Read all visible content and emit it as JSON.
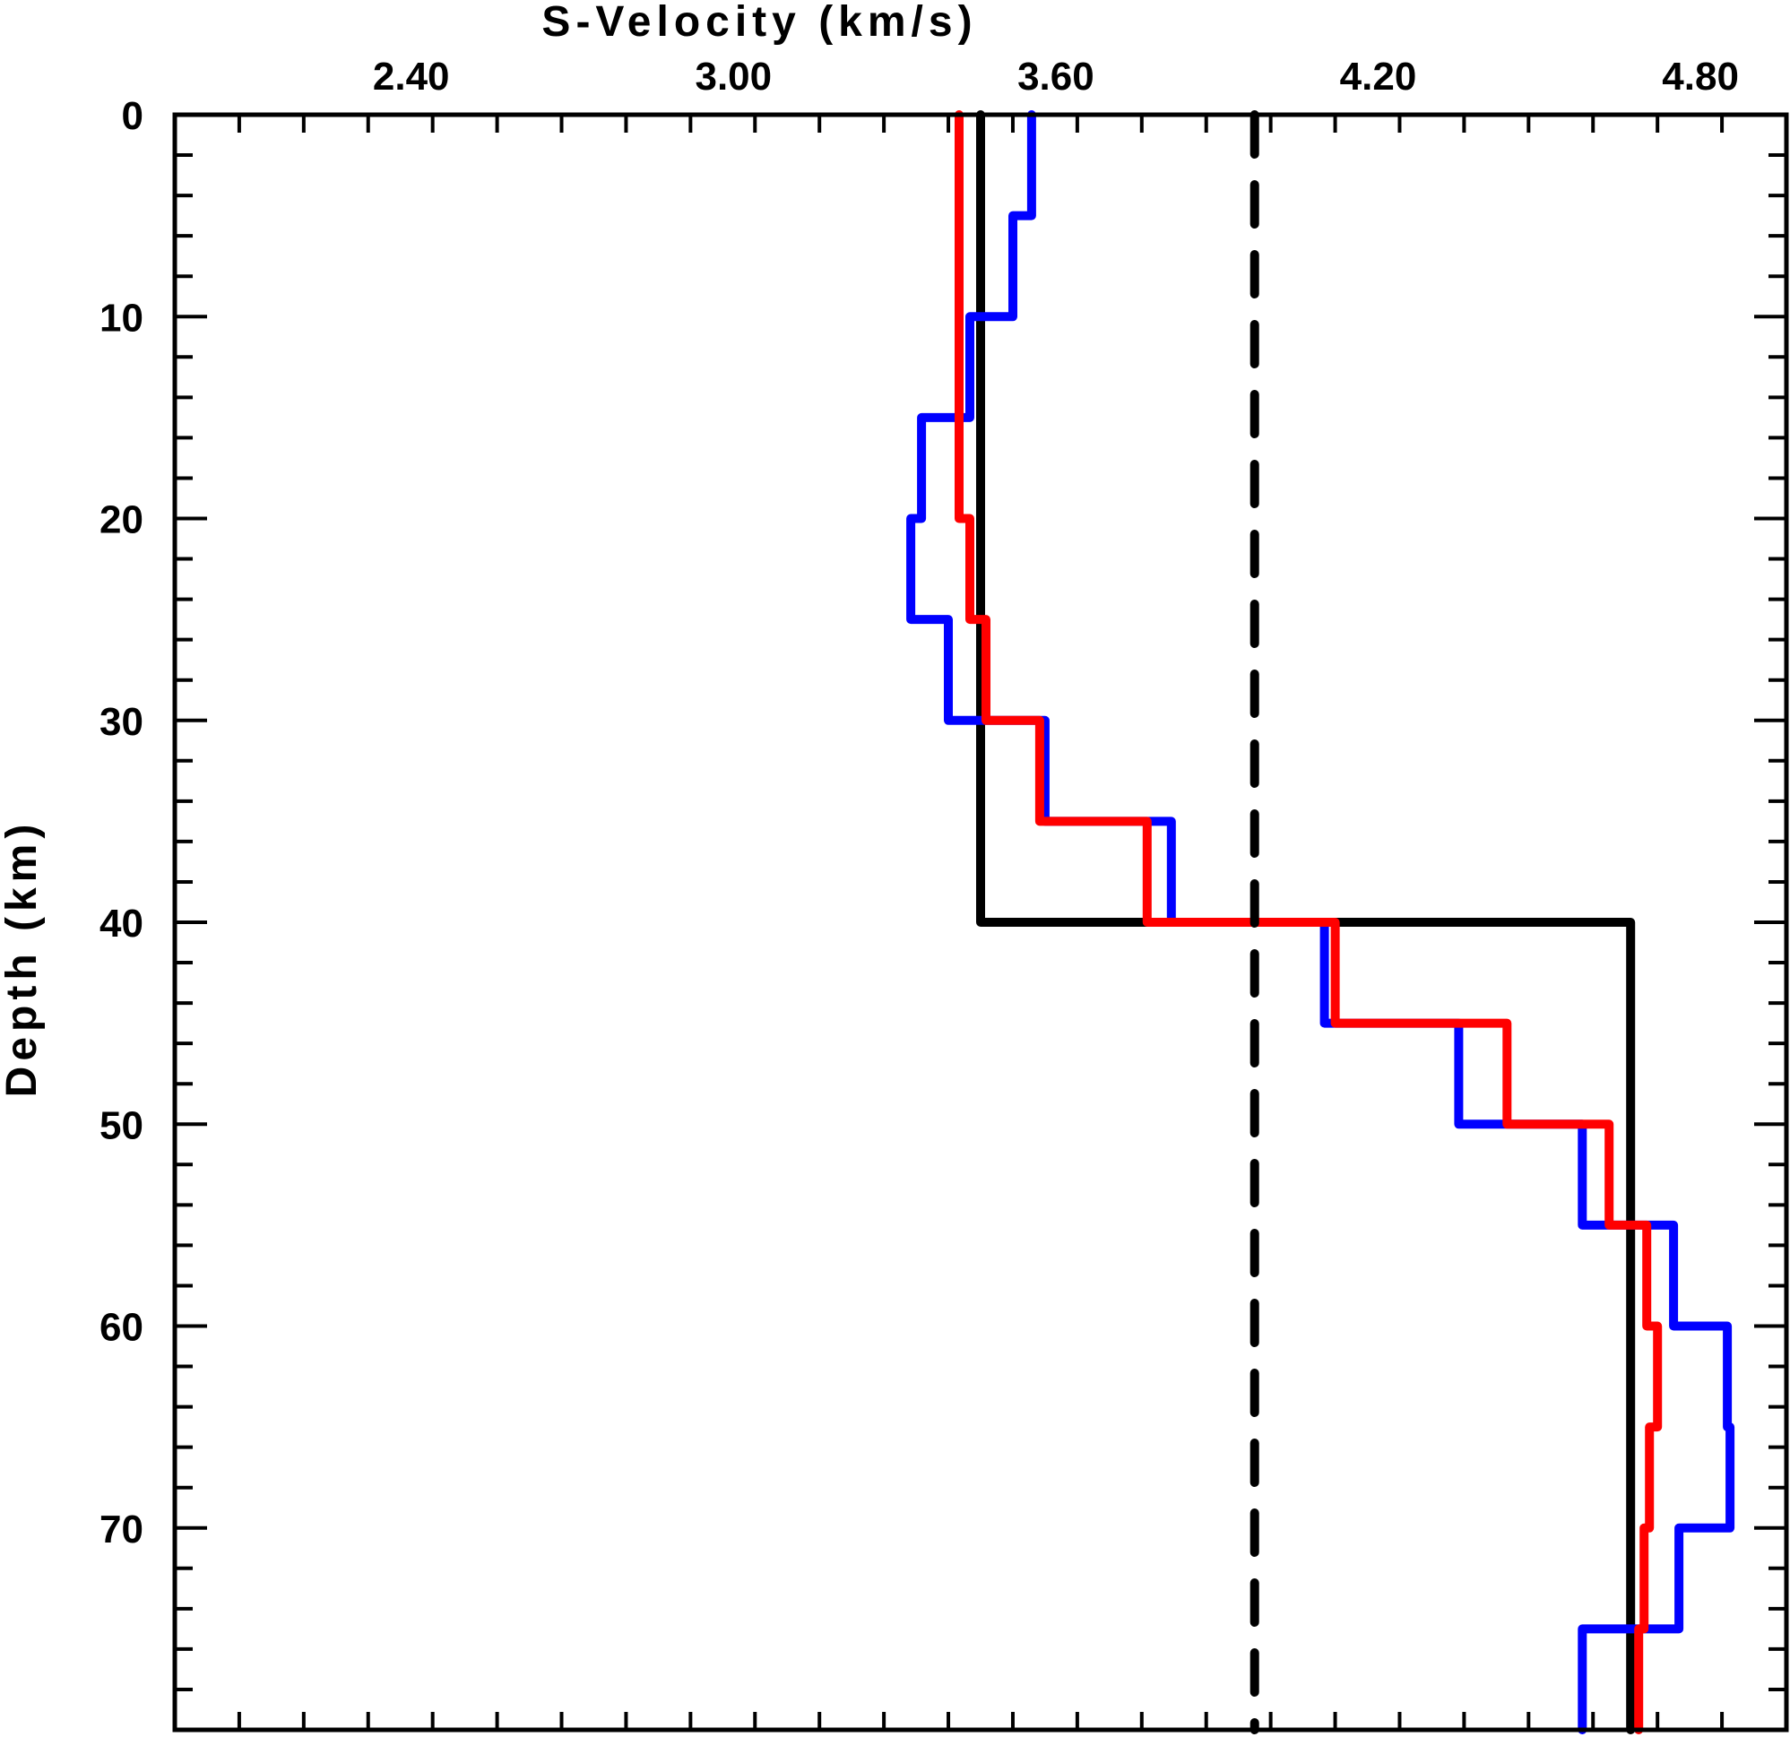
{
  "chart_data": {
    "type": "line",
    "xlabel": "S-Velocity (km/s)",
    "ylabel": "Depth (km)",
    "xlim": [
      1.96,
      4.96
    ],
    "ylim": [
      0,
      80
    ],
    "y_inverted": true,
    "x_axis_position": "top",
    "x_ticks": [
      2.4,
      3.0,
      3.6,
      4.2,
      4.8
    ],
    "x_tick_labels": [
      "2.40",
      "3.00",
      "3.60",
      "4.20",
      "4.80"
    ],
    "y_ticks": [
      0,
      10,
      20,
      30,
      40,
      50,
      60,
      70
    ],
    "y_tick_labels": [
      "0",
      "10",
      "20",
      "30",
      "40",
      "50",
      "60",
      "70"
    ],
    "grid": false,
    "series": [
      {
        "color": "#000000",
        "style": "solid",
        "points": [
          [
            3.46,
            0
          ],
          [
            3.46,
            40
          ],
          [
            4.67,
            40
          ],
          [
            4.67,
            80
          ]
        ]
      },
      {
        "color": "#0000ff",
        "style": "solid",
        "points": [
          [
            3.555,
            0
          ],
          [
            3.555,
            5
          ],
          [
            3.52,
            5
          ],
          [
            3.52,
            10
          ],
          [
            3.44,
            10
          ],
          [
            3.44,
            15
          ],
          [
            3.35,
            15
          ],
          [
            3.35,
            20
          ],
          [
            3.33,
            20
          ],
          [
            3.33,
            25
          ],
          [
            3.4,
            25
          ],
          [
            3.4,
            30
          ],
          [
            3.58,
            30
          ],
          [
            3.58,
            35
          ],
          [
            3.815,
            35
          ],
          [
            3.815,
            40
          ],
          [
            4.1,
            40
          ],
          [
            4.1,
            45
          ],
          [
            4.35,
            45
          ],
          [
            4.35,
            50
          ],
          [
            4.58,
            50
          ],
          [
            4.58,
            55
          ],
          [
            4.75,
            55
          ],
          [
            4.75,
            60
          ],
          [
            4.85,
            60
          ],
          [
            4.85,
            65
          ],
          [
            4.855,
            65
          ],
          [
            4.855,
            70
          ],
          [
            4.76,
            70
          ],
          [
            4.76,
            75
          ],
          [
            4.58,
            75
          ],
          [
            4.58,
            80
          ]
        ]
      },
      {
        "color": "#ff0000",
        "style": "solid",
        "points": [
          [
            3.42,
            0
          ],
          [
            3.42,
            20
          ],
          [
            3.44,
            20
          ],
          [
            3.44,
            25
          ],
          [
            3.47,
            25
          ],
          [
            3.47,
            30
          ],
          [
            3.57,
            30
          ],
          [
            3.57,
            35
          ],
          [
            3.77,
            35
          ],
          [
            3.77,
            40
          ],
          [
            4.12,
            40
          ],
          [
            4.12,
            45
          ],
          [
            4.44,
            45
          ],
          [
            4.44,
            50
          ],
          [
            4.63,
            50
          ],
          [
            4.63,
            55
          ],
          [
            4.7,
            55
          ],
          [
            4.7,
            60
          ],
          [
            4.72,
            60
          ],
          [
            4.72,
            65
          ],
          [
            4.705,
            65
          ],
          [
            4.705,
            70
          ],
          [
            4.695,
            70
          ],
          [
            4.695,
            75
          ],
          [
            4.685,
            75
          ],
          [
            4.685,
            80
          ]
        ]
      },
      {
        "color": "#000000",
        "style": "dashed",
        "points": [
          [
            3.97,
            0
          ],
          [
            3.97,
            80
          ]
        ]
      }
    ]
  }
}
